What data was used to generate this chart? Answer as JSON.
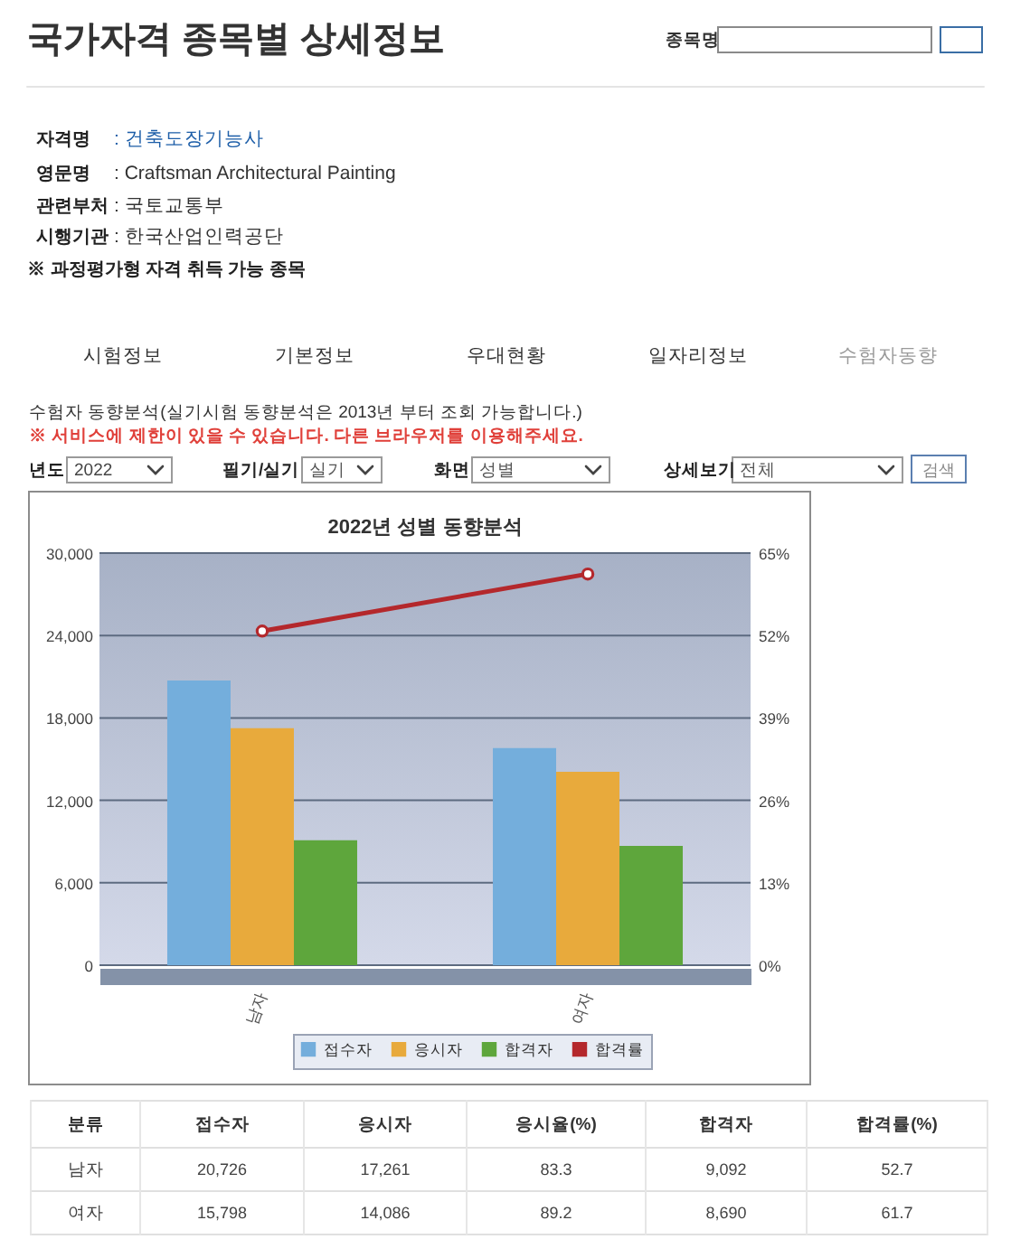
{
  "chart_data": [
    {
      "type": "other",
      "title": "국가자격 종목별 상세정보",
      "annotations": [
        "종목명",
        "자격명",
        ": 건축도장기능사",
        "영문명",
        ": Craftsman Architectural Painting",
        "관련부처",
        ": 국토교통부",
        "시행기관",
        ": 한국산업인력공단",
        "※ 과정평가형 자격 취득 가능 종목",
        "시험정보",
        "기본정보",
        "우대현황",
        "일자리정보",
        "수험자동향",
        "수험자 동향분석(실기시험 동향분석은 2013년 부터 조회 가능합니다.)",
        "※ 서비스에 제한이 있을 수 있습니다. 다른 브라우저를 이용해주세요.",
        "년도",
        "2022",
        "필기/실기",
        "실기",
        "화면",
        "성별",
        "상세보기",
        "전체",
        "검색"
      ]
    },
    {
      "type": "bar",
      "title": "2022년 성별 동향분석",
      "categories": [
        "남자",
        "여자"
      ],
      "series": [
        {
          "name": "접수자",
          "color": "#74aedc",
          "values": [
            20726,
            15798
          ]
        },
        {
          "name": "응시자",
          "color": "#e8aa3c",
          "values": [
            17261,
            14086
          ]
        },
        {
          "name": "합격자",
          "color": "#5ea63c",
          "values": [
            9092,
            8690
          ]
        },
        {
          "name": "합격률",
          "type": "line",
          "axis": "y2",
          "color": "#b4282c",
          "values": [
            52.7,
            61.7
          ]
        }
      ],
      "ylim": [
        0,
        30000
      ],
      "yticks": [
        0,
        {
          "value": 6000,
          "label": "6,000"
        },
        {
          "value": 12000,
          "label": "12,000"
        },
        {
          "value": 18000,
          "label": "18,000"
        },
        {
          "value": 24000,
          "label": "24,000"
        },
        {
          "value": 30000,
          "label": "30,000"
        }
      ],
      "y2lim": [
        0,
        65
      ],
      "y2ticks": [
        {
          "value": 0,
          "label": "0%"
        },
        {
          "value": 13,
          "label": "13%"
        },
        {
          "value": 26,
          "label": "26%"
        },
        {
          "value": 39,
          "label": "39%"
        },
        {
          "value": 52,
          "label": "52%"
        },
        {
          "value": 65,
          "label": "65%"
        }
      ],
      "grid": "y",
      "legend": "bottom",
      "marker": "circle"
    },
    {
      "type": "other",
      "xlabel": "분류",
      "categories": [
        "남자",
        "여자"
      ],
      "series": [
        {
          "name": "접수자",
          "values": [
            20726,
            15798
          ],
          "value_labels": [
            "20,726",
            "15,798"
          ]
        },
        {
          "name": "응시자",
          "values": [
            17261,
            14086
          ],
          "value_labels": [
            "17,261",
            "14,086"
          ]
        },
        {
          "name": "응시율(%)",
          "values": [
            83.3,
            89.2
          ],
          "value_labels": [
            "83.3",
            "89.2"
          ]
        },
        {
          "name": "합격자",
          "values": [
            9092,
            8690
          ],
          "value_labels": [
            "9,092",
            "8,690"
          ]
        },
        {
          "name": "합격률(%)",
          "values": [
            52.7,
            61.7
          ],
          "value_labels": [
            "52.7",
            "61.7"
          ]
        }
      ]
    }
  ]
}
